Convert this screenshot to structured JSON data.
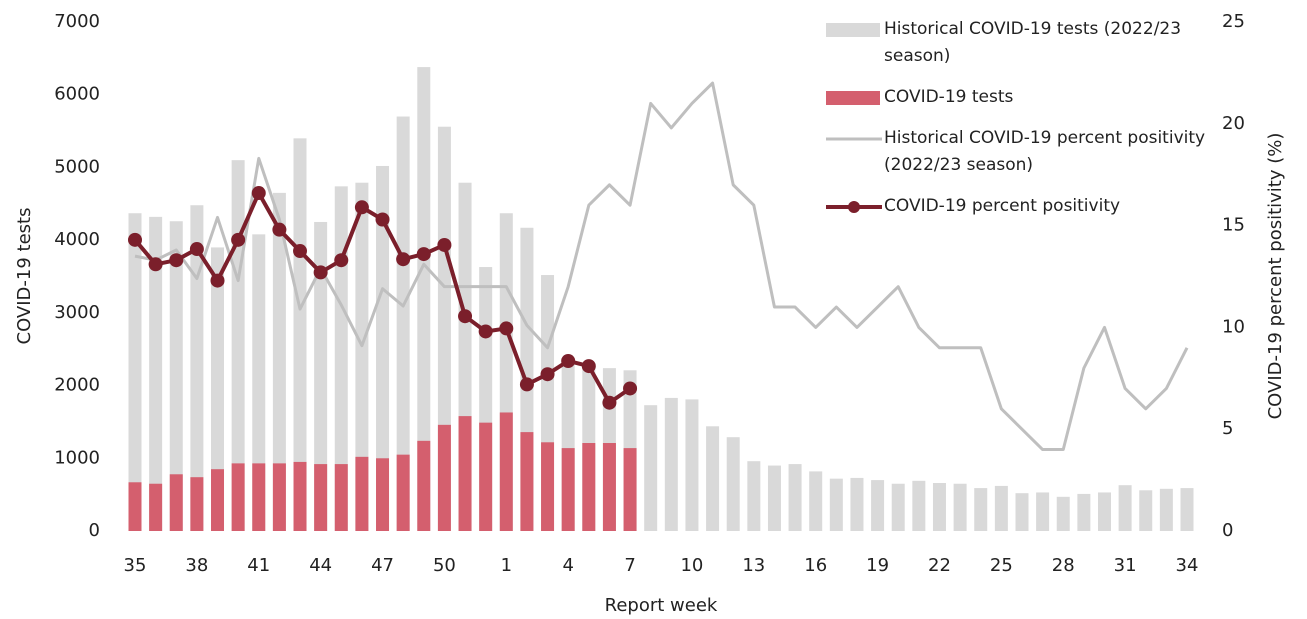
{
  "chart_data": {
    "type": "bar",
    "x_label": "Report week",
    "y_label": "COVID-19 tests",
    "y2_label": "COVID-19 percent positivity (%)",
    "categories": [
      "35",
      null,
      null,
      "38",
      null,
      null,
      "41",
      null,
      null,
      "44",
      null,
      null,
      "47",
      null,
      null,
      "50",
      null,
      null,
      "1",
      null,
      null,
      "4",
      null,
      null,
      "7",
      null,
      null,
      "10",
      null,
      null,
      "13",
      null,
      null,
      "16",
      null,
      null,
      "19",
      null,
      null,
      "22",
      null,
      null,
      "25",
      null,
      null,
      "28",
      null,
      null,
      "31",
      null,
      null,
      "34"
    ],
    "series": [
      {
        "name": "Historical COVID-19 tests (2022/23 season)",
        "type": "bar",
        "color": "#d9d9d9",
        "values": [
          4370,
          4320,
          4260,
          4480,
          3900,
          5100,
          4080,
          4650,
          5400,
          4250,
          4740,
          4790,
          5020,
          5700,
          6380,
          5560,
          4790,
          3630,
          4370,
          4170,
          3520,
          2350,
          2240,
          2240,
          2210,
          1730,
          1830,
          1810,
          1440,
          1290,
          960,
          900,
          920,
          820,
          720,
          730,
          700,
          650,
          690,
          660,
          650,
          590,
          620,
          520,
          530,
          470,
          510,
          530,
          630,
          560,
          580,
          590
        ]
      },
      {
        "name": "COVID-19 tests",
        "type": "bar",
        "color": "#d45f6e",
        "values": [
          670,
          650,
          780,
          740,
          850,
          930,
          930,
          930,
          950,
          920,
          920,
          1020,
          1000,
          1050,
          1240,
          1460,
          1580,
          1490,
          1630,
          1360,
          1220,
          1140,
          1210,
          1210,
          1140,
          null,
          null,
          null,
          null,
          null,
          null,
          null,
          null,
          null,
          null,
          null,
          null,
          null,
          null,
          null,
          null,
          null,
          null,
          null,
          null,
          null,
          null,
          null,
          null,
          null,
          null,
          null
        ]
      },
      {
        "name": "Historical COVID-19 percent positivity (2022/23 season)",
        "type": "line",
        "axis": "y2",
        "color": "#bfbfbf",
        "values": [
          13.5,
          13.3,
          13.8,
          12.4,
          15.4,
          12.3,
          18.3,
          15.3,
          10.9,
          12.9,
          11.1,
          9.1,
          11.9,
          11.05,
          13.1,
          12,
          12,
          12,
          12,
          10.1,
          9,
          12,
          16,
          17,
          16,
          21,
          19.8,
          21,
          22,
          17,
          16,
          11,
          11,
          10,
          11,
          10,
          11,
          12,
          10,
          9,
          9,
          9,
          6,
          5,
          4,
          4,
          8,
          10,
          7,
          6,
          7,
          9
        ]
      },
      {
        "name": "COVID-19 percent positivity",
        "type": "line",
        "axis": "y2",
        "color": "#7b1f2b",
        "markers": true,
        "values": [
          14.3,
          13.1,
          13.3,
          13.85,
          12.3,
          14.3,
          16.6,
          14.8,
          13.75,
          12.7,
          13.3,
          15.9,
          15.3,
          13.35,
          13.6,
          14.05,
          10.55,
          9.8,
          9.95,
          7.2,
          7.7,
          8.35,
          8.1,
          6.3,
          7,
          null,
          null,
          null,
          null,
          null,
          null,
          null,
          null,
          null,
          null,
          null,
          null,
          null,
          null,
          null,
          null,
          null,
          null,
          null,
          null,
          null,
          null,
          null,
          null,
          null,
          null,
          null
        ]
      }
    ],
    "ylim": [
      0,
      7000
    ],
    "yticks": [
      0,
      1000,
      2000,
      3000,
      4000,
      5000,
      6000,
      7000
    ],
    "y2lim": [
      0,
      25
    ],
    "y2ticks": [
      0,
      5,
      10,
      15,
      20,
      25
    ],
    "grid": false
  }
}
